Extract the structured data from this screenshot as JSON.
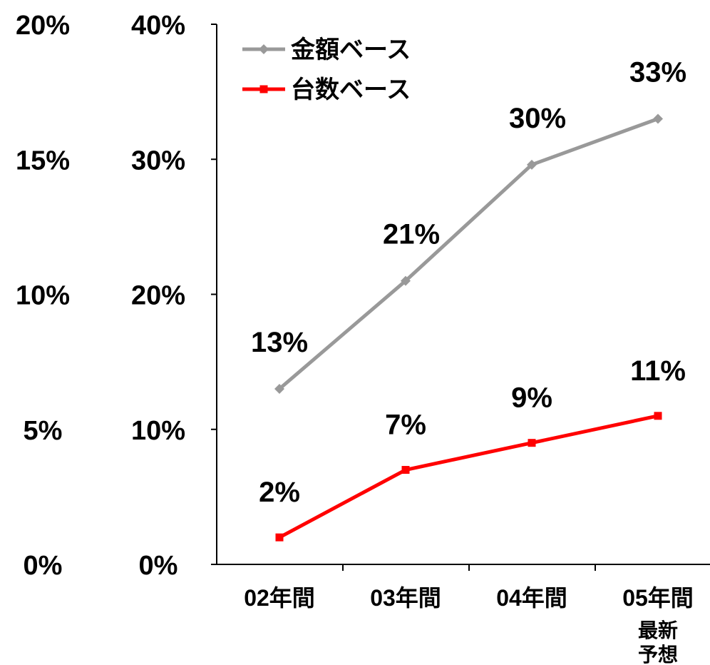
{
  "chart_data": {
    "type": "line",
    "categories": [
      "02年間",
      "03年間",
      "04年間",
      "05年間"
    ],
    "category_sublabels": [
      "",
      "",
      "",
      "最新\n予想"
    ],
    "y_left": {
      "ylim": [
        0,
        20
      ],
      "ticks": [
        "0%",
        "5%",
        "10%",
        "15%",
        "20%"
      ]
    },
    "y_right": {
      "ylim": [
        0,
        40
      ],
      "ticks": [
        "0%",
        "10%",
        "20%",
        "30%",
        "40%"
      ]
    },
    "series": [
      {
        "name": "金額ベース",
        "values": [
          13,
          21,
          29.6,
          33
        ],
        "labels": [
          "13%",
          "21%",
          "30%",
          "33%"
        ],
        "color": "#999999",
        "marker": "diamond"
      },
      {
        "name": "台数ベース",
        "values": [
          2,
          7,
          9,
          11
        ],
        "labels": [
          "2%",
          "7%",
          "9%",
          "11%"
        ],
        "color": "#ff0000",
        "marker": "square"
      }
    ],
    "legend": "top-left",
    "grid": false
  }
}
